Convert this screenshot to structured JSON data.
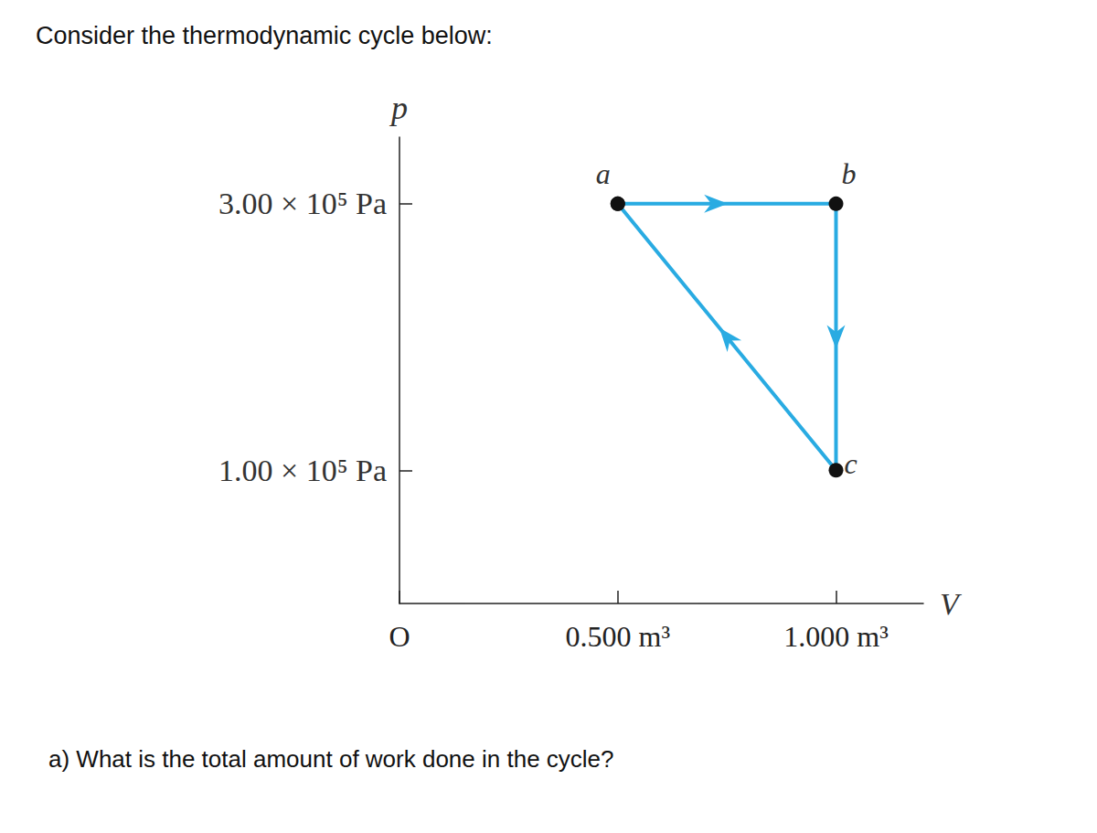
{
  "chart_data": {
    "type": "line",
    "title": "Consider the thermodynamic cycle below:",
    "footer": "a) What is the total amount of work done in the cycle?",
    "x_label": "V",
    "y_label": "p",
    "x": [
      0.5,
      1.0,
      1.0,
      0.5
    ],
    "values": [
      300000,
      300000,
      100000,
      300000
    ],
    "point_labels": [
      "a",
      "b",
      "c",
      null
    ],
    "color": "#29abe2",
    "marker": "circle",
    "line_style": "solid",
    "xlim": [
      0,
      1.2
    ],
    "ylim": [
      0,
      350000
    ],
    "xticks": [
      {
        "value": 0,
        "label": "O"
      },
      {
        "value": 0.5,
        "label": "0.500 m³"
      },
      {
        "value": 1.0,
        "label": "1.000 m³"
      }
    ],
    "yticks": [
      {
        "value": 100000,
        "label": "1.00 × 10⁵ Pa"
      },
      {
        "value": 300000,
        "label": "3.00 × 10⁵ Pa"
      }
    ],
    "grid": false
  }
}
